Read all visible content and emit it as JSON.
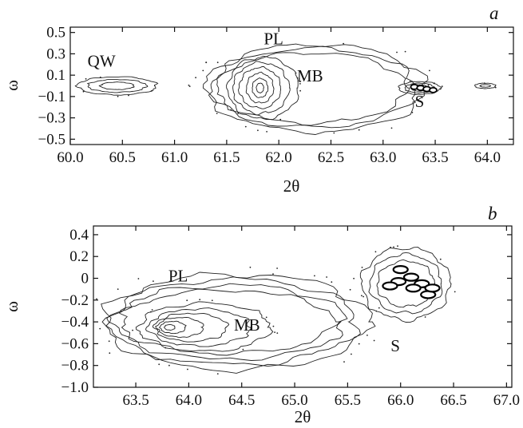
{
  "chart_data": [
    {
      "type": "contour",
      "panel_label": "a",
      "xlabel": "2θ",
      "ylabel": "ω",
      "xlim": [
        60.0,
        64.25
      ],
      "ylim": [
        -0.55,
        0.55
      ],
      "xticks": [
        60.0,
        60.5,
        61.0,
        61.5,
        62.0,
        62.5,
        63.0,
        63.5,
        64.0
      ],
      "xtick_labels": [
        "60.0",
        "60.5",
        "61.0",
        "61.5",
        "62.0",
        "62.5",
        "63.0",
        "63.5",
        "64.0"
      ],
      "yticks": [
        0.5,
        0.3,
        0.1,
        -0.1,
        -0.3,
        -0.5
      ],
      "ytick_labels": [
        "0.5",
        "0.3",
        "0.1",
        "−0.1",
        "−0.3",
        "−0.5"
      ],
      "annotations": [
        {
          "text": "QW",
          "x": 60.3,
          "y": 0.18
        },
        {
          "text": "PL",
          "x": 61.95,
          "y": 0.39
        },
        {
          "text": "MB",
          "x": 62.3,
          "y": 0.04
        },
        {
          "text": "S",
          "x": 63.35,
          "y": -0.2
        }
      ],
      "peaks": [
        {
          "name": "QW",
          "x": 60.45,
          "y": 0.0,
          "levels": [
            {
              "rx": 0.38,
              "ry": 0.085,
              "dx": 0.0,
              "dy": 0.0
            },
            {
              "rx": 0.28,
              "ry": 0.06,
              "dx": 0.0,
              "dy": 0.0
            },
            {
              "rx": 0.16,
              "ry": 0.035,
              "dx": 0.0,
              "dy": 0.0
            }
          ]
        },
        {
          "name": "PL",
          "x": 62.35,
          "y": -0.02,
          "levels": [
            {
              "rx": 1.05,
              "ry": 0.41,
              "dx": 0.0,
              "dy": 0.0
            },
            {
              "rx": 0.98,
              "ry": 0.37,
              "dx": -0.02,
              "dy": 0.0
            },
            {
              "rx": 0.91,
              "ry": 0.33,
              "dx": -0.04,
              "dy": 0.0
            }
          ]
        },
        {
          "name": "MB",
          "x": 61.85,
          "y": -0.02,
          "levels": [
            {
              "rx": 0.34,
              "ry": 0.29,
              "dx": 0.0,
              "dy": 0.0
            },
            {
              "rx": 0.27,
              "ry": 0.24,
              "dx": -0.02,
              "dy": 0.0
            },
            {
              "rx": 0.2,
              "ry": 0.19,
              "dx": -0.03,
              "dy": 0.0
            },
            {
              "rx": 0.13,
              "ry": 0.14,
              "dx": -0.03,
              "dy": 0.0
            },
            {
              "rx": 0.075,
              "ry": 0.09,
              "dx": -0.03,
              "dy": 0.0
            },
            {
              "rx": 0.035,
              "ry": 0.045,
              "dx": -0.03,
              "dy": 0.0
            }
          ]
        },
        {
          "name": "S",
          "x": 63.35,
          "y": -0.02,
          "levels": [
            {
              "rx": 0.2,
              "ry": 0.06,
              "dx": 0.0,
              "dy": 0.0
            },
            {
              "rx": 0.14,
              "ry": 0.045,
              "dx": 0.0,
              "dy": 0.0
            },
            {
              "rx": 0.08,
              "ry": 0.03,
              "dx": 0.0,
              "dy": 0.0
            }
          ]
        },
        {
          "name": "satellite",
          "x": 63.98,
          "y": 0.0,
          "levels": [
            {
              "rx": 0.1,
              "ry": 0.025,
              "dx": 0.0,
              "dy": 0.0
            },
            {
              "rx": 0.05,
              "ry": 0.012,
              "dx": 0.0,
              "dy": 0.0
            }
          ]
        }
      ]
    },
    {
      "type": "contour",
      "panel_label": "b",
      "xlabel": "2θ",
      "ylabel": "ω",
      "xlim": [
        63.1,
        67.05
      ],
      "ylim": [
        -1.0,
        0.48
      ],
      "xticks": [
        63.5,
        64.0,
        64.5,
        65.0,
        65.5,
        66.0,
        66.5,
        67.0
      ],
      "xtick_labels": [
        "63.5",
        "64.0",
        "64.5",
        "65.0",
        "65.5",
        "66.0",
        "66.5",
        "67.0"
      ],
      "yticks": [
        0.4,
        0.2,
        0.0,
        -0.2,
        -0.4,
        -0.6,
        -0.8,
        -1.0
      ],
      "ytick_labels": [
        "0.4",
        "0.2",
        "0",
        "−0.2",
        "−0.4",
        "−0.6",
        "−0.8",
        "−1.0"
      ],
      "annotations": [
        {
          "text": "PL",
          "x": 63.9,
          "y": -0.03
        },
        {
          "text": "MB",
          "x": 64.55,
          "y": -0.48
        },
        {
          "text": "S",
          "x": 65.95,
          "y": -0.67
        }
      ],
      "peaks": [
        {
          "name": "PL",
          "x": 64.45,
          "y": -0.4,
          "levels": [
            {
              "rx": 1.25,
              "ry": 0.44,
              "dx": 0.0,
              "dy": 0.0
            },
            {
              "rx": 1.17,
              "ry": 0.39,
              "dx": -0.03,
              "dy": 0.0
            },
            {
              "rx": 1.09,
              "ry": 0.34,
              "dx": -0.06,
              "dy": 0.0
            },
            {
              "rx": 1.0,
              "ry": 0.29,
              "dx": -0.09,
              "dy": 0.0
            }
          ]
        },
        {
          "name": "MB",
          "x": 64.1,
          "y": -0.45,
          "levels": [
            {
              "rx": 0.62,
              "ry": 0.22,
              "dx": 0.05,
              "dy": 0.0
            },
            {
              "rx": 0.48,
              "ry": 0.17,
              "dx": 0.0,
              "dy": 0.0
            },
            {
              "rx": 0.34,
              "ry": 0.13,
              "dx": -0.08,
              "dy": 0.0
            },
            {
              "rx": 0.22,
              "ry": 0.09,
              "dx": -0.18,
              "dy": 0.0
            },
            {
              "rx": 0.12,
              "ry": 0.055,
              "dx": -0.25,
              "dy": 0.0
            },
            {
              "rx": 0.05,
              "ry": 0.025,
              "dx": -0.28,
              "dy": 0.0
            }
          ]
        },
        {
          "name": "S",
          "x": 66.05,
          "y": -0.05,
          "levels": [
            {
              "rx": 0.42,
              "ry": 0.33,
              "dx": 0.0,
              "dy": 0.0
            },
            {
              "rx": 0.34,
              "ry": 0.27,
              "dx": 0.0,
              "dy": 0.0
            },
            {
              "rx": 0.27,
              "ry": 0.21,
              "dx": 0.0,
              "dy": 0.0
            }
          ]
        }
      ]
    }
  ]
}
